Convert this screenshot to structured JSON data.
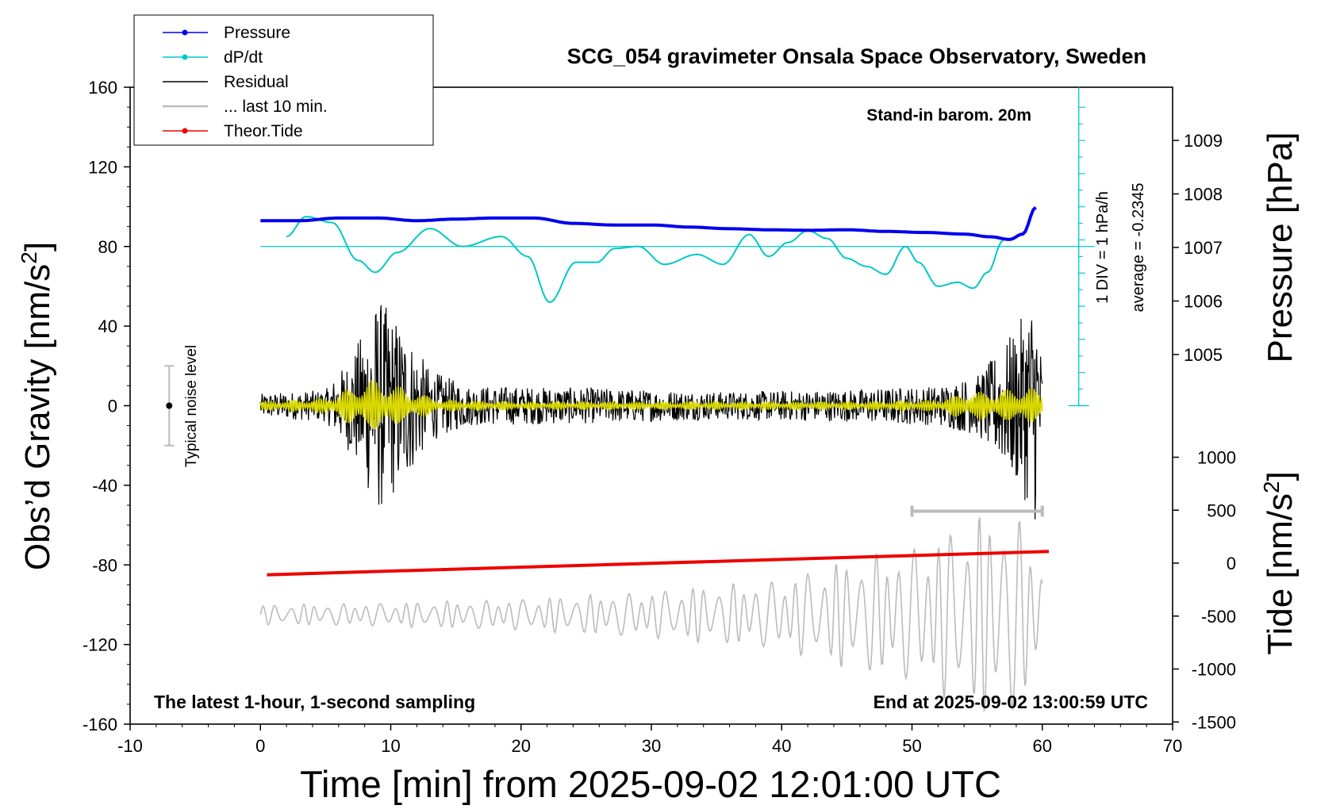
{
  "chart_data": {
    "type": "line",
    "title": "SCG_054 gravimeter Onsala Space Observatory, Sweden",
    "xlabel": "Time [min] from 2025-09-02 12:01:00 UTC",
    "ylabel_left_main": "Obs’d Gravity [nm/s",
    "ylabel_left_sup": "2",
    "ylabel_left_end": "]",
    "ylabel_right_pressure": "Pressure [hPa]",
    "ylabel_right_tide_main": "Tide [nm/s",
    "ylabel_right_tide_sup": "2",
    "ylabel_right_tide_end": "]",
    "xlim": [
      -10,
      70
    ],
    "ylim": [
      -160,
      160
    ],
    "x_ticks": [
      "-10",
      "0",
      "10",
      "20",
      "30",
      "40",
      "50",
      "60",
      "70"
    ],
    "y_ticks": [
      "160",
      "120",
      "80",
      "40",
      "0",
      "-40",
      "-80",
      "-120",
      "-160"
    ],
    "pressure_axis": {
      "ticks": [
        "1009",
        "1008",
        "1007",
        "1006",
        "1005"
      ],
      "values": [
        1009,
        1008,
        1007,
        1006,
        1005
      ]
    },
    "tide_axis": {
      "ticks": [
        "1000",
        "500",
        "0",
        "-500",
        "-1000",
        "-1500"
      ],
      "values": [
        1000,
        500,
        0,
        -500,
        -1000,
        -1500
      ]
    },
    "legend": {
      "position": "top-left",
      "entries": [
        {
          "label": "Pressure",
          "color": "#0000ee",
          "marker": true
        },
        {
          "label": "dP/dt",
          "color": "#00c8c8",
          "marker": true
        },
        {
          "label": "Residual",
          "color": "#000000",
          "marker": false
        },
        {
          "label": "... last 10 min.",
          "color": "#bbbbbb",
          "marker": false
        },
        {
          "label": "Theor.Tide",
          "color": "#ee0000",
          "marker": true
        }
      ]
    },
    "annotations": {
      "barometer": "Stand-in barom. 20m",
      "dpdt_div": "1 DIV = 1 hPa/h",
      "dpdt_average": "average = -0.2345",
      "noise_label": "Typical noise level",
      "bottom_left": "The latest 1-hour, 1-second sampling",
      "bottom_right": "End at 2025-09-02 13:00:59 UTC"
    },
    "noise_level": {
      "x": -7,
      "center": 0,
      "range": [
        -20,
        20
      ]
    },
    "dpdt_reference_y": 80,
    "series": [
      {
        "name": "Pressure",
        "color": "#0000ee",
        "unit": "hPa",
        "x": [
          0,
          3,
          6,
          9,
          12,
          15,
          18,
          21,
          24,
          27,
          30,
          33,
          36,
          39,
          42,
          45,
          48,
          51,
          54,
          56,
          57.5,
          58.5,
          59.5
        ],
        "values": [
          1007.5,
          1007.5,
          1007.55,
          1007.55,
          1007.5,
          1007.53,
          1007.55,
          1007.55,
          1007.45,
          1007.42,
          1007.42,
          1007.38,
          1007.35,
          1007.33,
          1007.32,
          1007.33,
          1007.3,
          1007.28,
          1007.25,
          1007.2,
          1007.15,
          1007.25,
          1007.75
        ]
      },
      {
        "name": "dP/dt",
        "color": "#00c8c8",
        "unit": "gravity-axis",
        "x": [
          2,
          3.5,
          5.5,
          7.5,
          8.8,
          10.5,
          13,
          15.5,
          18.5,
          20.5,
          22.2,
          24.2,
          25.8,
          27.2,
          29,
          31,
          33.5,
          35.5,
          37.5,
          39,
          40.5,
          42,
          43.5,
          45,
          46.5,
          48,
          49.5,
          50.5,
          52,
          53.5,
          54.7,
          55.8,
          57
        ],
        "values": [
          85,
          95,
          92,
          73,
          67,
          77,
          89,
          80,
          85,
          75,
          52,
          72,
          72,
          79,
          80,
          71,
          76,
          71,
          86,
          75,
          82,
          88,
          84,
          74,
          70,
          66,
          80,
          72,
          60,
          62,
          59,
          67,
          83
        ]
      },
      {
        "name": "Theor.Tide",
        "color": "#ee0000",
        "unit": "nm/s2",
        "x": [
          0.5,
          60.5
        ],
        "values": [
          -110,
          110
        ]
      },
      {
        "name": "Residual",
        "color": "#000000",
        "unit": "nm/s2",
        "x_range": [
          0,
          60
        ],
        "amplitude_profile": {
          "x": [
            0,
            5,
            7,
            9,
            11,
            13,
            16,
            25,
            35,
            45,
            52,
            55,
            57,
            58.5,
            59.5,
            60
          ],
          "amp": [
            6,
            8,
            25,
            55,
            40,
            18,
            10,
            9,
            7,
            8,
            10,
            15,
            30,
            45,
            60,
            20
          ]
        }
      },
      {
        "name": "Filtered",
        "color": "#d8d800",
        "unit": "nm/s2",
        "x_range": [
          0,
          60
        ],
        "amplitude_profile": {
          "x": [
            0,
            5,
            7,
            9,
            11,
            14,
            20,
            45,
            52,
            54,
            57,
            59,
            60
          ],
          "amp": [
            2,
            4,
            10,
            14,
            9,
            3,
            2,
            2,
            3,
            7,
            8,
            10,
            6
          ]
        }
      },
      {
        "name": "... last 10 min.",
        "color": "#bbbbbb",
        "unit": "nm/s2",
        "x_range": [
          0,
          60
        ],
        "center": -105,
        "amplitude_profile": {
          "x": [
            0,
            10,
            20,
            30,
            40,
            45,
            50,
            55,
            57,
            59,
            60
          ],
          "amp": [
            5,
            6,
            8,
            12,
            18,
            28,
            35,
            50,
            55,
            45,
            25
          ]
        }
      },
      {
        "name": "Time window",
        "color": "#bbbbbb",
        "x": [
          50,
          60
        ],
        "y": -53
      }
    ]
  }
}
